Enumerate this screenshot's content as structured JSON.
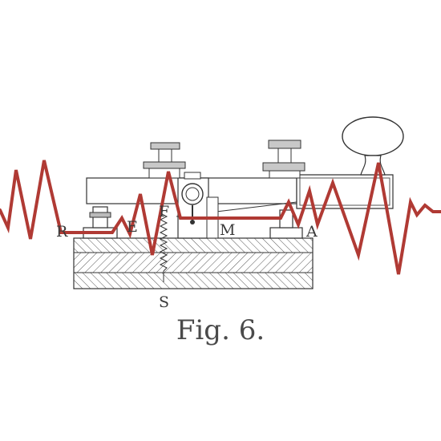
{
  "figure": {
    "caption": "Fig. 6.",
    "labels": {
      "R": "R",
      "E": "E",
      "F": "F",
      "M": "M",
      "A": "A",
      "S": "S"
    }
  },
  "colors": {
    "ink": "#3a3a3a",
    "wave": "#b03a34",
    "plate": "#c8c8c8",
    "background": "#ffffff"
  }
}
